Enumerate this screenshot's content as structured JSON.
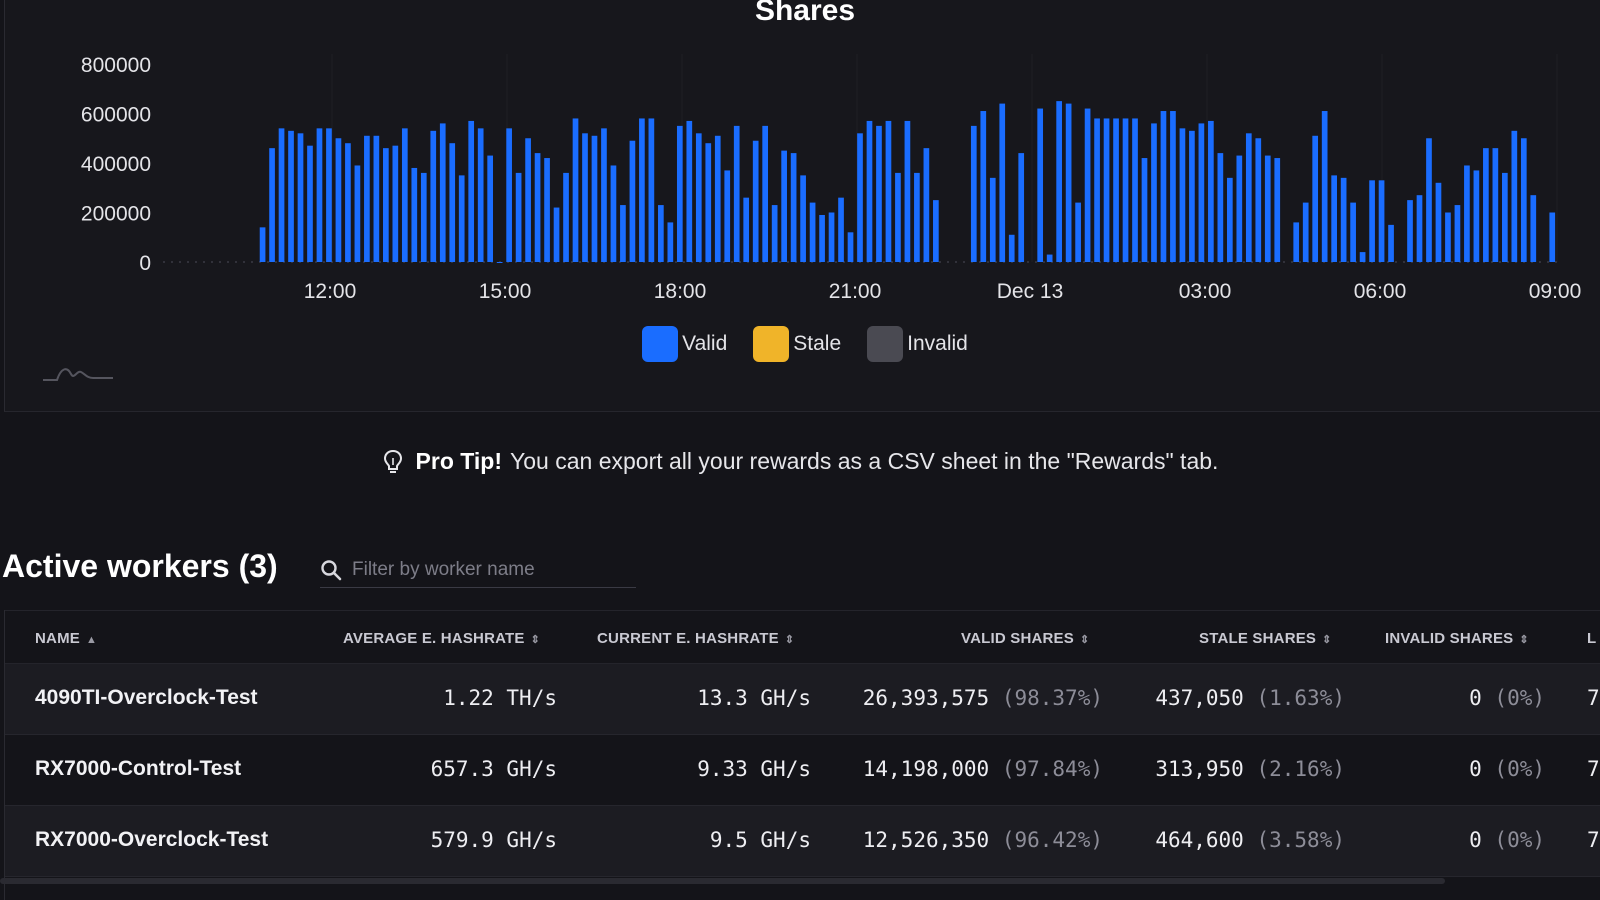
{
  "chart_data": {
    "type": "bar",
    "title": "Shares",
    "yticks": [
      "800000",
      "600000",
      "400000",
      "200000",
      "0"
    ],
    "ylim": [
      0,
      800000
    ],
    "xticks": [
      "12:00",
      "15:00",
      "18:00",
      "21:00",
      "Dec 13",
      "03:00",
      "06:00",
      "09:00"
    ],
    "legend": [
      {
        "name": "Valid",
        "color": "#1a6dff"
      },
      {
        "name": "Stale",
        "color": "#f0b429"
      },
      {
        "name": "Invalid",
        "color": "#4a4a52"
      }
    ],
    "grid": "vertical",
    "legend_position": "bottom-center",
    "series": [
      {
        "name": "Valid",
        "values": [
          0,
          0,
          0,
          0,
          0,
          0,
          0,
          0,
          0,
          0,
          140000,
          460000,
          540000,
          530000,
          520000,
          470000,
          540000,
          540000,
          500000,
          480000,
          390000,
          510000,
          510000,
          460000,
          470000,
          540000,
          380000,
          360000,
          530000,
          560000,
          480000,
          350000,
          570000,
          540000,
          430000,
          10,
          540000,
          360000,
          500000,
          440000,
          420000,
          220000,
          360000,
          580000,
          520000,
          510000,
          540000,
          390000,
          230000,
          490000,
          580000,
          580000,
          230000,
          160000,
          550000,
          570000,
          520000,
          480000,
          510000,
          370000,
          550000,
          260000,
          490000,
          550000,
          230000,
          450000,
          440000,
          350000,
          240000,
          190000,
          200000,
          260000,
          120000,
          520000,
          570000,
          550000,
          570000,
          360000,
          570000,
          360000,
          460000,
          250000,
          0,
          0,
          0,
          550000,
          610000,
          340000,
          640000,
          110000,
          440000,
          0,
          620000,
          30000,
          650000,
          640000,
          240000,
          620000,
          580000,
          580000,
          580000,
          580000,
          580000,
          420000,
          560000,
          610000,
          610000,
          540000,
          530000,
          560000,
          570000,
          440000,
          340000,
          430000,
          520000,
          500000,
          430000,
          420000,
          0,
          160000,
          240000,
          510000,
          610000,
          350000,
          340000,
          240000,
          40000,
          330000,
          330000,
          150000,
          0,
          250000,
          270000,
          500000,
          320000,
          200000,
          230000,
          390000,
          370000,
          460000,
          460000,
          360000,
          530000,
          500000,
          270000,
          0,
          200000
        ]
      }
    ]
  },
  "pro_tip": {
    "strong": "Pro Tip!",
    "text": "You can export all your rewards as a CSV sheet in the \"Rewards\" tab."
  },
  "workers": {
    "title": "Active workers (3)",
    "filter_placeholder": "Filter by worker name",
    "columns": [
      "NAME",
      "AVERAGE E. HASHRATE",
      "CURRENT E. HASHRATE",
      "VALID SHARES",
      "STALE SHARES",
      "INVALID SHARES",
      "L"
    ],
    "rows": [
      {
        "name": "4090TI-Overclock-Test",
        "avg": "1.22 TH/s",
        "cur": "13.3 GH/s",
        "valid": "26,393,575",
        "valid_pct": "(98.37%)",
        "stale": "437,050",
        "stale_pct": "(1.63%)",
        "invalid": "0",
        "invalid_pct": "(0%)",
        "last": "7"
      },
      {
        "name": "RX7000-Control-Test",
        "avg": "657.3 GH/s",
        "cur": "9.33 GH/s",
        "valid": "14,198,000",
        "valid_pct": "(97.84%)",
        "stale": "313,950",
        "stale_pct": "(2.16%)",
        "invalid": "0",
        "invalid_pct": "(0%)",
        "last": "7"
      },
      {
        "name": "RX7000-Overclock-Test",
        "avg": "579.9 GH/s",
        "cur": "9.5 GH/s",
        "valid": "12,526,350",
        "valid_pct": "(96.42%)",
        "stale": "464,600",
        "stale_pct": "(3.58%)",
        "invalid": "0",
        "invalid_pct": "(0%)",
        "last": "7"
      }
    ]
  }
}
